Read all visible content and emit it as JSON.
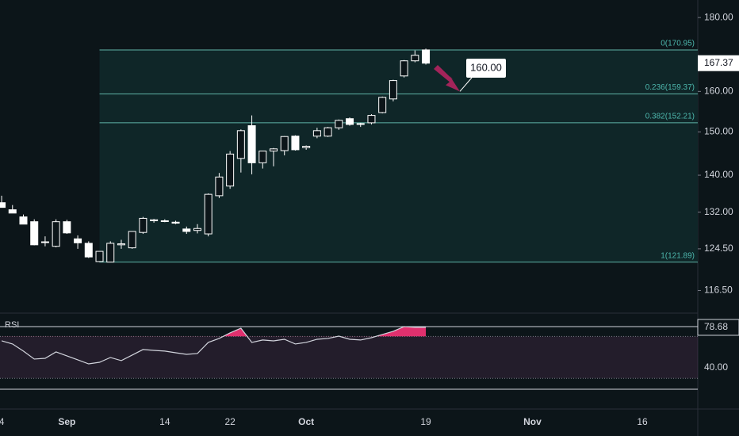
{
  "chart_data": [
    {
      "type": "candlestick",
      "x": [
        0,
        1,
        2,
        3,
        4,
        5,
        6,
        7,
        8,
        9,
        10,
        11,
        12,
        13,
        14,
        15,
        16,
        17,
        18,
        19,
        20,
        21,
        22,
        23,
        24,
        25,
        26,
        27,
        28,
        29,
        30,
        31,
        32,
        33,
        34,
        35,
        36,
        37,
        38,
        39
      ],
      "open": [
        134,
        132.5,
        131,
        130,
        125.8,
        125,
        130,
        126.5,
        125.6,
        122,
        121.9,
        125.3,
        124.7,
        127.8,
        130.2,
        130.2,
        129.9,
        128.5,
        128.2,
        127.5,
        135.5,
        137.6,
        143.8,
        151.5,
        142.8,
        145.5,
        145.6,
        149,
        146.3,
        149,
        149,
        151,
        153.2,
        151.8,
        152.2,
        154.7,
        158.1,
        164,
        168,
        170.95
      ],
      "high": [
        135.5,
        133.5,
        131.5,
        130.5,
        127,
        130.5,
        130.4,
        127.2,
        126,
        123.5,
        126,
        126.3,
        128,
        131,
        130.6,
        130.5,
        130.2,
        129,
        129.5,
        136,
        140.5,
        145.5,
        150.6,
        154,
        145.5,
        146.2,
        149,
        149.2,
        146.8,
        151,
        151.2,
        153,
        153.5,
        152.2,
        154.3,
        158.7,
        163,
        168.2,
        170.8,
        171.3
      ],
      "low": [
        133,
        131.8,
        129.5,
        125.2,
        125,
        124.8,
        127.5,
        124.5,
        122.7,
        121.9,
        121.9,
        124.5,
        124.5,
        127.5,
        129.8,
        129.9,
        129.5,
        127.5,
        127.6,
        127,
        135,
        137,
        140.6,
        140.2,
        141.5,
        142,
        144.5,
        145.6,
        145.8,
        148.5,
        148.8,
        150.5,
        151.5,
        151.2,
        151.8,
        154.5,
        157.5,
        163.6,
        167.6,
        167
      ],
      "close": [
        133,
        131.8,
        129.5,
        125.3,
        125.9,
        130,
        127.7,
        125.7,
        122.9,
        124,
        125.6,
        125.5,
        128,
        130.7,
        130.4,
        130.1,
        129.7,
        128,
        128.6,
        135.8,
        139.6,
        144.8,
        150.3,
        142.8,
        145.5,
        146,
        148.9,
        145.8,
        146.6,
        150.3,
        151,
        152.8,
        151.8,
        152,
        154,
        158.5,
        162.8,
        168,
        169.5,
        167.37
      ],
      "current_label": "167.37",
      "xlim": [
        -0.15,
        64
      ],
      "xticks": [
        {
          "value": 0,
          "label": "4"
        },
        {
          "value": 6,
          "label": "Sep"
        },
        {
          "value": 15,
          "label": "14"
        },
        {
          "value": 21,
          "label": "22"
        },
        {
          "value": 28,
          "label": "Oct"
        },
        {
          "value": 39,
          "label": "19"
        },
        {
          "value": 48.8,
          "label": "Nov"
        },
        {
          "value": 58.9,
          "label": "16"
        }
      ],
      "ylim": [
        112.8,
        185.1
      ],
      "log_scale": true,
      "yticks": [
        {
          "value": 116.5,
          "label": "116.50"
        },
        {
          "value": 124.5,
          "label": "124.50"
        },
        {
          "value": 132,
          "label": "132.00"
        },
        {
          "value": 140,
          "label": "140.00"
        },
        {
          "value": 150,
          "label": "150.00"
        },
        {
          "value": 160,
          "label": "160.00"
        },
        {
          "value": 180,
          "label": "180.00"
        }
      ],
      "fib_start": 9,
      "fib_levels": [
        {
          "value": 170.95,
          "label": "0(170.95)"
        },
        {
          "value": 159.37,
          "label": "0.236(159.37)"
        },
        {
          "value": 152.21,
          "label": "0.382(152.21)"
        },
        {
          "value": 121.89,
          "label": "1(121.89)"
        }
      ],
      "annotation": {
        "value": 160,
        "label": "160.00"
      },
      "color": "#ffffff",
      "grid": true
    },
    {
      "type": "line",
      "title": "RSI",
      "x": [
        0,
        1,
        2,
        3,
        4,
        5,
        6,
        7,
        8,
        9,
        10,
        11,
        12,
        13,
        14,
        15,
        16,
        17,
        18,
        19,
        20,
        21,
        22,
        23,
        24,
        25,
        26,
        27,
        28,
        29,
        30,
        31,
        32,
        33,
        34,
        35,
        36,
        37,
        38,
        39
      ],
      "values": [
        65.8,
        62.8,
        56,
        48.4,
        49.1,
        55.2,
        51.4,
        47.6,
        43.8,
        45.3,
        49.9,
        46.9,
        52.2,
        57.5,
        56.7,
        56,
        54.4,
        52.9,
        53.7,
        64.3,
        68.1,
        73.4,
        77.9,
        64.3,
        66.6,
        65.8,
        67.3,
        62.8,
        64.3,
        67.3,
        68.1,
        70.3,
        67.3,
        66.6,
        68.8,
        71.9,
        74.9,
        79.4,
        78.7,
        78.68
      ],
      "value_labels": [
        null,
        null,
        null,
        null,
        null,
        null,
        null,
        null,
        null,
        null,
        null,
        null,
        null,
        null,
        null,
        null,
        null,
        null,
        null,
        null,
        null,
        null,
        null,
        null,
        null,
        null,
        null,
        null,
        null,
        null,
        null,
        null,
        null,
        null,
        null,
        null,
        null,
        null,
        null,
        "78.68"
      ],
      "color": "#d1d4dc",
      "overbought_color": "#e0306e",
      "band": [
        30,
        70
      ],
      "ylim": [
        18.8,
        88.5
      ],
      "yticks": [
        {
          "value": 40,
          "label": "40.00"
        }
      ]
    }
  ]
}
